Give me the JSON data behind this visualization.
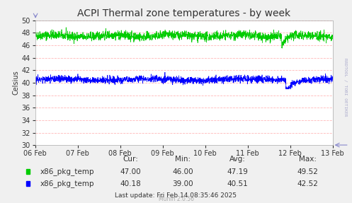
{
  "title": "ACPI Thermal zone temperatures - by week",
  "ylabel": "Celsius",
  "ylim": [
    30,
    50
  ],
  "yticks": [
    30,
    32,
    34,
    36,
    38,
    40,
    42,
    44,
    46,
    48,
    50
  ],
  "xlabels": [
    "06 Feb",
    "07 Feb",
    "08 Feb",
    "09 Feb",
    "10 Feb",
    "11 Feb",
    "12 Feb",
    "13 Feb"
  ],
  "bg_color": "#f0f0f0",
  "plot_bg_color": "#ffffff",
  "grid_color": "#ff9999",
  "green_color": "#00cc00",
  "blue_color": "#0000ff",
  "green_label": "x86_pkg_temp",
  "blue_label": "x86_pkg_temp",
  "green_cur": "47.00",
  "green_min": "46.00",
  "green_avg": "47.19",
  "green_max": "49.52",
  "blue_cur": "40.18",
  "blue_min": "39.00",
  "blue_avg": "40.51",
  "blue_max": "42.52",
  "last_update": "Last update: Fri Feb 14 08:35:46 2025",
  "munin_version": "Munin 2.0.56",
  "rrd_text": "RRDTOOL / TOBI OETIKER",
  "title_fontsize": 10,
  "axis_fontsize": 7,
  "legend_fontsize": 7.5
}
